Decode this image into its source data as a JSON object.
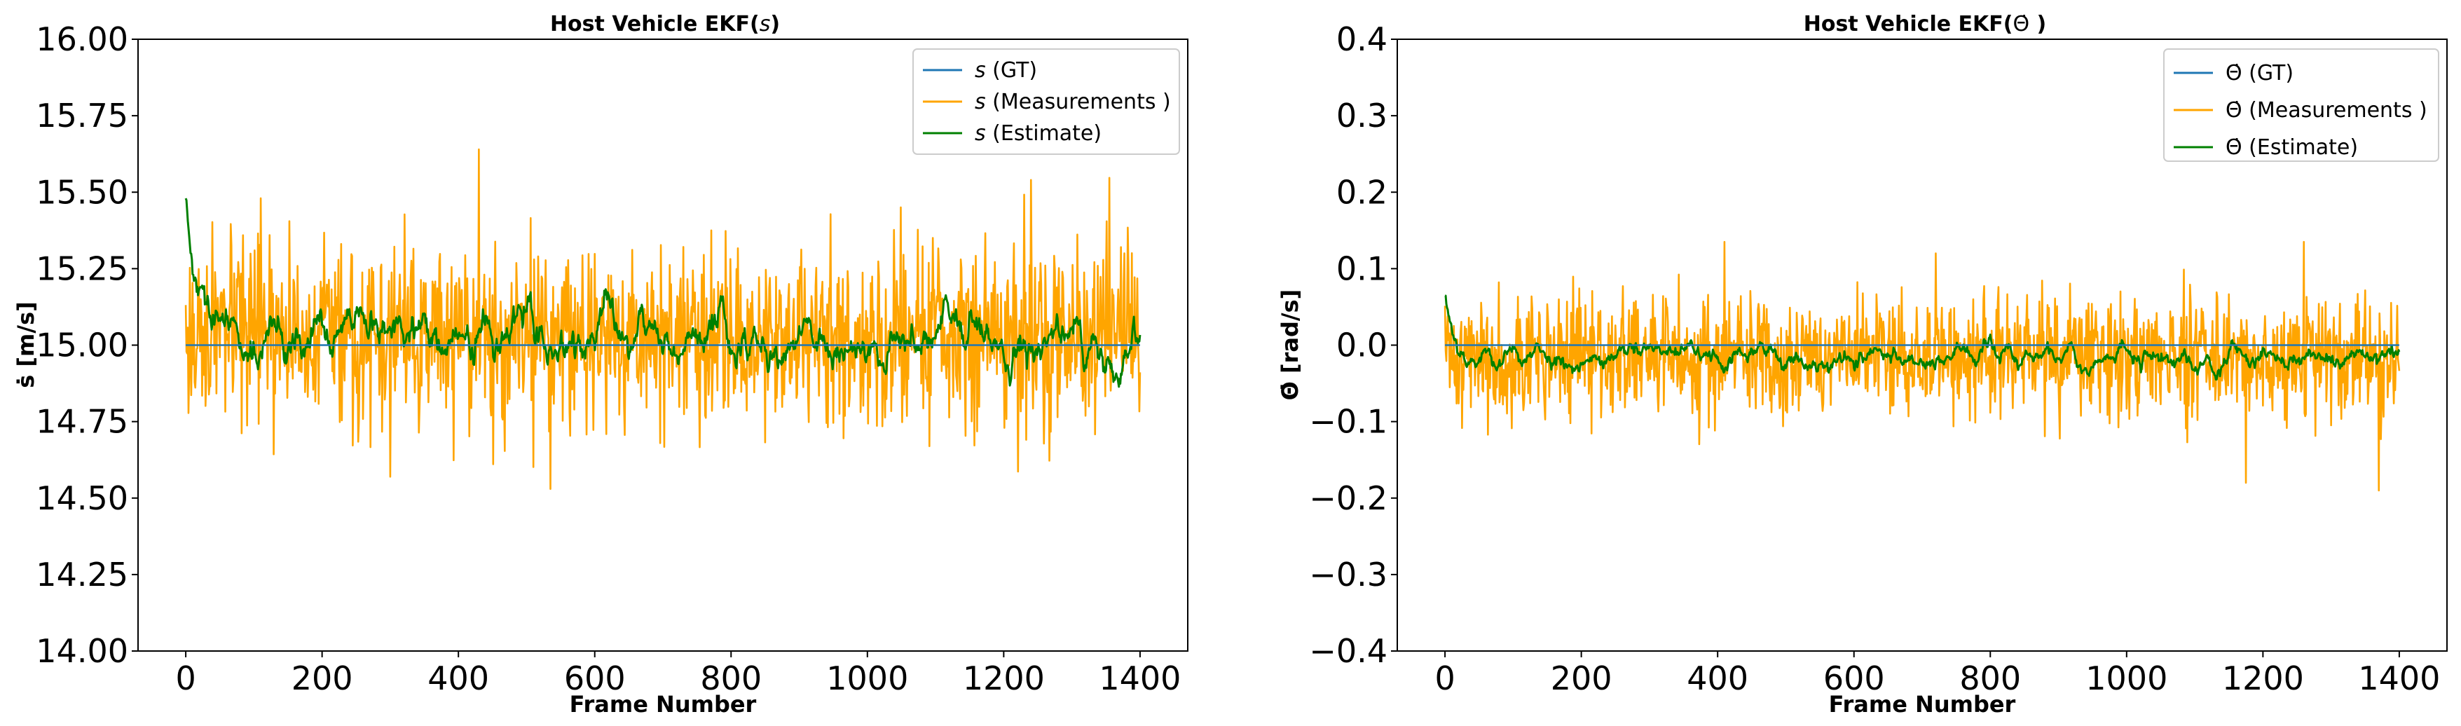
{
  "chart_data": [
    {
      "type": "line",
      "title_prefix": "Host Vehicle EKF(",
      "title_symbol": "s",
      "title_suffix": ")",
      "xlabel": "Frame Number",
      "ylabel": "ṡ [m/s]",
      "xlim": [
        -70,
        1470
      ],
      "ylim": [
        14.0,
        16.0
      ],
      "xticks": [
        0,
        200,
        400,
        600,
        800,
        1000,
        1200,
        1400
      ],
      "yticks": [
        14.0,
        14.25,
        14.5,
        14.75,
        15.0,
        15.25,
        15.5,
        15.75,
        16.0
      ],
      "ytick_labels": [
        "14.00",
        "14.25",
        "14.50",
        "14.75",
        "15.00",
        "15.25",
        "15.50",
        "15.75",
        "16.00"
      ],
      "legend_position": "top-right",
      "series": [
        {
          "name": "s (GT)",
          "symbol": "s",
          "label_suffix": " (GT)",
          "color": "#1f77b4",
          "kind": "constant",
          "value": 15.0
        },
        {
          "name": "s (Measurements )",
          "symbol": "s",
          "label_suffix": " (Measurements )",
          "color": "#ffa500",
          "kind": "noise",
          "mean": 15.03,
          "std": 0.14,
          "seed": 17,
          "n": 1401,
          "peaks": [
            [
              430,
              15.64
            ],
            [
              1240,
              15.54
            ],
            [
              110,
              15.48
            ],
            [
              535,
              14.53
            ],
            [
              300,
              14.57
            ]
          ]
        },
        {
          "name": "s (Estimate)",
          "symbol": "s",
          "label_suffix": " (Estimate)",
          "color": "#008000",
          "kind": "smooth",
          "mean": 15.02,
          "std": 0.05,
          "seed": 29,
          "n": 1401,
          "start": 15.48
        }
      ]
    },
    {
      "type": "line",
      "title_prefix": "Host Vehicle EKF(",
      "title_symbol": "Θ̇",
      "title_suffix": " )",
      "xlabel": "Frame Number",
      "ylabel": "Θ̇ [rad/s]",
      "xlim": [
        -70,
        1470
      ],
      "ylim": [
        -0.4,
        0.4
      ],
      "xticks": [
        0,
        200,
        400,
        600,
        800,
        1000,
        1200,
        1400
      ],
      "yticks": [
        -0.4,
        -0.3,
        -0.2,
        -0.1,
        0.0,
        0.1,
        0.2,
        0.3,
        0.4
      ],
      "ytick_labels": [
        "−0.4",
        "−0.3",
        "−0.2",
        "−0.1",
        "0.0",
        "0.1",
        "0.2",
        "0.3",
        "0.4"
      ],
      "legend_position": "top-right",
      "series": [
        {
          "name": "Θ̇ (GT)",
          "symbol": "Θ̇",
          "label_suffix": " (GT)",
          "color": "#1f77b4",
          "kind": "constant",
          "value": 0.0
        },
        {
          "name": "Θ̇ (Measurements )",
          "symbol": "Θ̇",
          "label_suffix": " (Measurements )",
          "color": "#ffa500",
          "kind": "noise",
          "mean": -0.015,
          "std": 0.04,
          "seed": 41,
          "n": 1401,
          "peaks": [
            [
              1370,
              -0.19
            ],
            [
              1175,
              -0.18
            ],
            [
              1260,
              0.135
            ],
            [
              410,
              0.135
            ],
            [
              720,
              0.12
            ]
          ]
        },
        {
          "name": "Θ̇ (Estimate)",
          "symbol": "Θ̇",
          "label_suffix": " (Estimate)",
          "color": "#008000",
          "kind": "smooth",
          "mean": -0.015,
          "std": 0.01,
          "seed": 53,
          "n": 1401,
          "start": 0.065
        }
      ]
    }
  ]
}
